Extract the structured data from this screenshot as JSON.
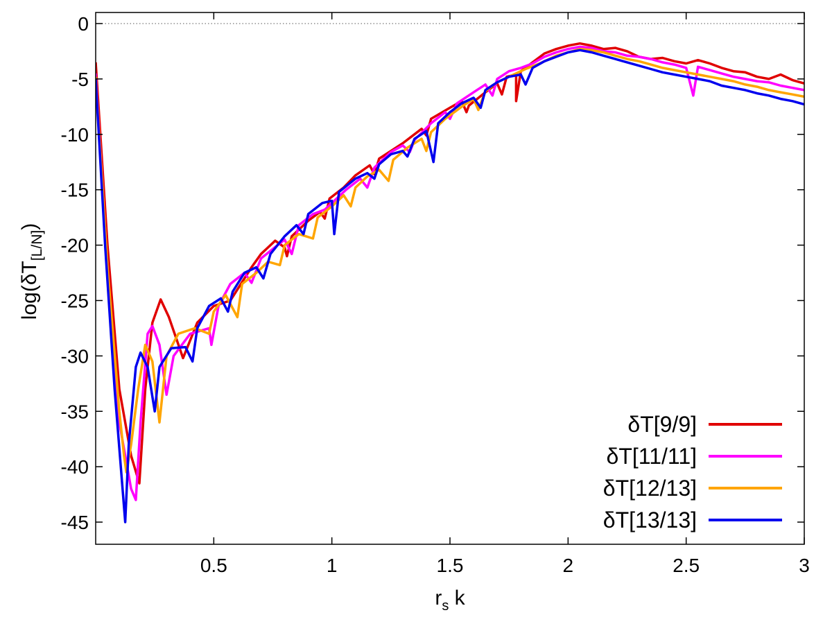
{
  "chart_data": {
    "type": "line",
    "xlabel": "r",
    "xlabel_sub": "s",
    "xlabel_suffix": " k",
    "ylabel": "log(δT",
    "ylabel_sub": "[L/N]",
    "ylabel_suffix": ")",
    "xlim": [
      0,
      3
    ],
    "ylim": [
      -47,
      1
    ],
    "xticks": [
      0.5,
      1,
      1.5,
      2,
      2.5,
      3
    ],
    "xtick_labels": [
      "0.5",
      "1",
      "1.5",
      "2",
      "2.5",
      "3"
    ],
    "yticks": [
      0,
      -5,
      -10,
      -15,
      -20,
      -25,
      -30,
      -35,
      -40,
      -45
    ],
    "ytick_labels": [
      "0",
      "-5",
      "-10",
      "-15",
      "-20",
      "-25",
      "-30",
      "-35",
      "-40",
      "-45"
    ],
    "zero_line": "dotted",
    "grid": false,
    "legend_position": "bottom-right",
    "series": [
      {
        "name": "δT[9/9]",
        "color": "#e00000",
        "points": [
          [
            0.0,
            -3.5
          ],
          [
            0.05,
            -20
          ],
          [
            0.1,
            -33
          ],
          [
            0.15,
            -39
          ],
          [
            0.185,
            -41.5
          ],
          [
            0.21,
            -33
          ],
          [
            0.24,
            -27
          ],
          [
            0.275,
            -24.9
          ],
          [
            0.31,
            -26.5
          ],
          [
            0.37,
            -30.2
          ],
          [
            0.43,
            -27
          ],
          [
            0.5,
            -25.5
          ],
          [
            0.57,
            -25
          ],
          [
            0.6,
            -24
          ],
          [
            0.66,
            -22
          ],
          [
            0.7,
            -20.8
          ],
          [
            0.76,
            -19.6
          ],
          [
            0.8,
            -20.2
          ],
          [
            0.81,
            -21
          ],
          [
            0.83,
            -19.2
          ],
          [
            0.9,
            -17.8
          ],
          [
            0.95,
            -17
          ],
          [
            0.97,
            -17.6
          ],
          [
            0.99,
            -15.8
          ],
          [
            1.05,
            -14.8
          ],
          [
            1.1,
            -13.7
          ],
          [
            1.16,
            -12.8
          ],
          [
            1.18,
            -13.6
          ],
          [
            1.2,
            -12.2
          ],
          [
            1.3,
            -10.8
          ],
          [
            1.38,
            -9.5
          ],
          [
            1.4,
            -10.1
          ],
          [
            1.42,
            -8.6
          ],
          [
            1.5,
            -7.6
          ],
          [
            1.55,
            -7
          ],
          [
            1.57,
            -8
          ],
          [
            1.58,
            -7.4
          ],
          [
            1.65,
            -6.2
          ],
          [
            1.7,
            -5.4
          ],
          [
            1.72,
            -6.4
          ],
          [
            1.74,
            -4.8
          ],
          [
            1.78,
            -4.6
          ],
          [
            1.78,
            -7
          ],
          [
            1.8,
            -4.3
          ],
          [
            1.85,
            -3.5
          ],
          [
            1.9,
            -2.7
          ],
          [
            1.95,
            -2.3
          ],
          [
            2.0,
            -2
          ],
          [
            2.05,
            -1.8
          ],
          [
            2.1,
            -2
          ],
          [
            2.15,
            -2.3
          ],
          [
            2.2,
            -2.2
          ],
          [
            2.25,
            -2.5
          ],
          [
            2.3,
            -3
          ],
          [
            2.35,
            -3.2
          ],
          [
            2.4,
            -3.1
          ],
          [
            2.45,
            -3.4
          ],
          [
            2.5,
            -3.6
          ],
          [
            2.55,
            -3.3
          ],
          [
            2.6,
            -3.6
          ],
          [
            2.65,
            -4
          ],
          [
            2.7,
            -4.3
          ],
          [
            2.75,
            -4.4
          ],
          [
            2.8,
            -4.8
          ],
          [
            2.85,
            -5
          ],
          [
            2.9,
            -4.6
          ],
          [
            2.95,
            -5.1
          ],
          [
            3.0,
            -5.4
          ]
        ]
      },
      {
        "name": "δT[11/11]",
        "color": "#ff00ff",
        "points": [
          [
            0.0,
            -4.5
          ],
          [
            0.05,
            -22
          ],
          [
            0.1,
            -36
          ],
          [
            0.15,
            -42
          ],
          [
            0.17,
            -43
          ],
          [
            0.19,
            -36
          ],
          [
            0.22,
            -28
          ],
          [
            0.24,
            -27.3
          ],
          [
            0.27,
            -29
          ],
          [
            0.3,
            -33.5
          ],
          [
            0.33,
            -30
          ],
          [
            0.4,
            -28
          ],
          [
            0.48,
            -27.5
          ],
          [
            0.49,
            -29
          ],
          [
            0.52,
            -25.5
          ],
          [
            0.57,
            -23.5
          ],
          [
            0.63,
            -22.5
          ],
          [
            0.66,
            -23.4
          ],
          [
            0.7,
            -21.2
          ],
          [
            0.77,
            -20
          ],
          [
            0.8,
            -19.5
          ],
          [
            0.83,
            -20.8
          ],
          [
            0.86,
            -18.2
          ],
          [
            0.92,
            -17.2
          ],
          [
            0.97,
            -16.8
          ],
          [
            1.0,
            -16.2
          ],
          [
            1.06,
            -15
          ],
          [
            1.12,
            -14
          ],
          [
            1.15,
            -14.8
          ],
          [
            1.18,
            -13
          ],
          [
            1.25,
            -11.6
          ],
          [
            1.3,
            -11
          ],
          [
            1.33,
            -11.6
          ],
          [
            1.35,
            -10.5
          ],
          [
            1.42,
            -9
          ],
          [
            1.48,
            -8
          ],
          [
            1.5,
            -8.6
          ],
          [
            1.53,
            -7.2
          ],
          [
            1.6,
            -6.2
          ],
          [
            1.65,
            -5.5
          ],
          [
            1.68,
            -6.5
          ],
          [
            1.7,
            -5
          ],
          [
            1.75,
            -4.3
          ],
          [
            1.8,
            -4
          ],
          [
            1.85,
            -3.6
          ],
          [
            1.9,
            -3
          ],
          [
            1.95,
            -2.6
          ],
          [
            2.0,
            -2.3
          ],
          [
            2.05,
            -2.1
          ],
          [
            2.1,
            -2.2
          ],
          [
            2.15,
            -2.5
          ],
          [
            2.2,
            -2.6
          ],
          [
            2.25,
            -2.9
          ],
          [
            2.3,
            -3
          ],
          [
            2.35,
            -3.2
          ],
          [
            2.4,
            -3.5
          ],
          [
            2.45,
            -3.7
          ],
          [
            2.5,
            -4
          ],
          [
            2.53,
            -6.5
          ],
          [
            2.55,
            -3.9
          ],
          [
            2.6,
            -4.2
          ],
          [
            2.65,
            -4.5
          ],
          [
            2.7,
            -4.8
          ],
          [
            2.75,
            -5
          ],
          [
            2.8,
            -5.2
          ],
          [
            2.85,
            -5.3
          ],
          [
            2.9,
            -5.6
          ],
          [
            2.95,
            -5.8
          ],
          [
            3.0,
            -6
          ]
        ]
      },
      {
        "name": "δT[12/13]",
        "color": "#ffa500",
        "points": [
          [
            0.0,
            -4.8
          ],
          [
            0.05,
            -22
          ],
          [
            0.1,
            -35
          ],
          [
            0.12,
            -39
          ],
          [
            0.13,
            -40.5
          ],
          [
            0.15,
            -38
          ],
          [
            0.18,
            -33
          ],
          [
            0.21,
            -29
          ],
          [
            0.24,
            -30.5
          ],
          [
            0.27,
            -36
          ],
          [
            0.3,
            -30
          ],
          [
            0.35,
            -28
          ],
          [
            0.42,
            -27.5
          ],
          [
            0.48,
            -28
          ],
          [
            0.5,
            -26
          ],
          [
            0.55,
            -24.5
          ],
          [
            0.6,
            -26.5
          ],
          [
            0.62,
            -23.5
          ],
          [
            0.68,
            -22.5
          ],
          [
            0.73,
            -21.5
          ],
          [
            0.78,
            -21.8
          ],
          [
            0.8,
            -20
          ],
          [
            0.86,
            -19
          ],
          [
            0.92,
            -19.4
          ],
          [
            0.94,
            -17.5
          ],
          [
            1.0,
            -16.5
          ],
          [
            1.05,
            -15.5
          ],
          [
            1.08,
            -16.5
          ],
          [
            1.1,
            -14.8
          ],
          [
            1.15,
            -13.8
          ],
          [
            1.2,
            -13.2
          ],
          [
            1.24,
            -14.2
          ],
          [
            1.26,
            -12.3
          ],
          [
            1.32,
            -11.2
          ],
          [
            1.38,
            -10.4
          ],
          [
            1.4,
            -11.5
          ],
          [
            1.42,
            -9.8
          ],
          [
            1.48,
            -8.6
          ],
          [
            1.55,
            -7.5
          ],
          [
            1.6,
            -6.8
          ],
          [
            1.62,
            -7.8
          ],
          [
            1.65,
            -6.1
          ],
          [
            1.7,
            -5.3
          ],
          [
            1.76,
            -4.7
          ],
          [
            1.82,
            -4.1
          ],
          [
            1.88,
            -3.6
          ],
          [
            1.95,
            -2.9
          ],
          [
            2.0,
            -2.6
          ],
          [
            2.05,
            -2.3
          ],
          [
            2.1,
            -2.4
          ],
          [
            2.15,
            -2.6
          ],
          [
            2.2,
            -2.9
          ],
          [
            2.25,
            -3.2
          ],
          [
            2.3,
            -3.4
          ],
          [
            2.35,
            -3.7
          ],
          [
            2.4,
            -4
          ],
          [
            2.45,
            -4.2
          ],
          [
            2.5,
            -4.4
          ],
          [
            2.55,
            -4.6
          ],
          [
            2.6,
            -4.8
          ],
          [
            2.65,
            -5
          ],
          [
            2.7,
            -5.2
          ],
          [
            2.75,
            -5.5
          ],
          [
            2.8,
            -5.7
          ],
          [
            2.85,
            -6
          ],
          [
            2.9,
            -6.2
          ],
          [
            2.95,
            -6.4
          ],
          [
            3.0,
            -6.6
          ]
        ]
      },
      {
        "name": "δT[13/13]",
        "color": "#0000ee",
        "points": [
          [
            0.0,
            -5
          ],
          [
            0.04,
            -20
          ],
          [
            0.08,
            -33
          ],
          [
            0.11,
            -41
          ],
          [
            0.125,
            -45
          ],
          [
            0.14,
            -38
          ],
          [
            0.17,
            -31
          ],
          [
            0.19,
            -29.7
          ],
          [
            0.22,
            -31
          ],
          [
            0.25,
            -35
          ],
          [
            0.27,
            -31
          ],
          [
            0.32,
            -29.3
          ],
          [
            0.38,
            -29.2
          ],
          [
            0.41,
            -30.5
          ],
          [
            0.43,
            -27.5
          ],
          [
            0.48,
            -25.5
          ],
          [
            0.53,
            -24.8
          ],
          [
            0.56,
            -26
          ],
          [
            0.58,
            -24.2
          ],
          [
            0.63,
            -22.5
          ],
          [
            0.68,
            -22
          ],
          [
            0.71,
            -23
          ],
          [
            0.74,
            -20.8
          ],
          [
            0.8,
            -19.2
          ],
          [
            0.85,
            -18.2
          ],
          [
            0.88,
            -19
          ],
          [
            0.9,
            -17.2
          ],
          [
            0.96,
            -16.2
          ],
          [
            1.0,
            -16
          ],
          [
            1.01,
            -19
          ],
          [
            1.03,
            -15.2
          ],
          [
            1.1,
            -14
          ],
          [
            1.15,
            -13.5
          ],
          [
            1.18,
            -14
          ],
          [
            1.2,
            -12.7
          ],
          [
            1.25,
            -11.8
          ],
          [
            1.3,
            -11.5
          ],
          [
            1.32,
            -12
          ],
          [
            1.35,
            -10.4
          ],
          [
            1.4,
            -9.7
          ],
          [
            1.43,
            -12.5
          ],
          [
            1.45,
            -9
          ],
          [
            1.5,
            -8
          ],
          [
            1.55,
            -7.2
          ],
          [
            1.6,
            -6.7
          ],
          [
            1.63,
            -7.6
          ],
          [
            1.65,
            -6
          ],
          [
            1.7,
            -5.3
          ],
          [
            1.75,
            -4.8
          ],
          [
            1.8,
            -4.6
          ],
          [
            1.82,
            -5.5
          ],
          [
            1.85,
            -4
          ],
          [
            1.9,
            -3.4
          ],
          [
            1.95,
            -3
          ],
          [
            2.0,
            -2.6
          ],
          [
            2.05,
            -2.4
          ],
          [
            2.1,
            -2.6
          ],
          [
            2.15,
            -2.9
          ],
          [
            2.2,
            -3.2
          ],
          [
            2.25,
            -3.5
          ],
          [
            2.3,
            -3.8
          ],
          [
            2.35,
            -4.1
          ],
          [
            2.4,
            -4.4
          ],
          [
            2.45,
            -4.6
          ],
          [
            2.5,
            -4.8
          ],
          [
            2.55,
            -5
          ],
          [
            2.6,
            -5.2
          ],
          [
            2.65,
            -5.6
          ],
          [
            2.7,
            -5.8
          ],
          [
            2.75,
            -6
          ],
          [
            2.8,
            -6.3
          ],
          [
            2.85,
            -6.5
          ],
          [
            2.9,
            -6.8
          ],
          [
            2.95,
            -7
          ],
          [
            3.0,
            -7.3
          ]
        ]
      }
    ]
  }
}
